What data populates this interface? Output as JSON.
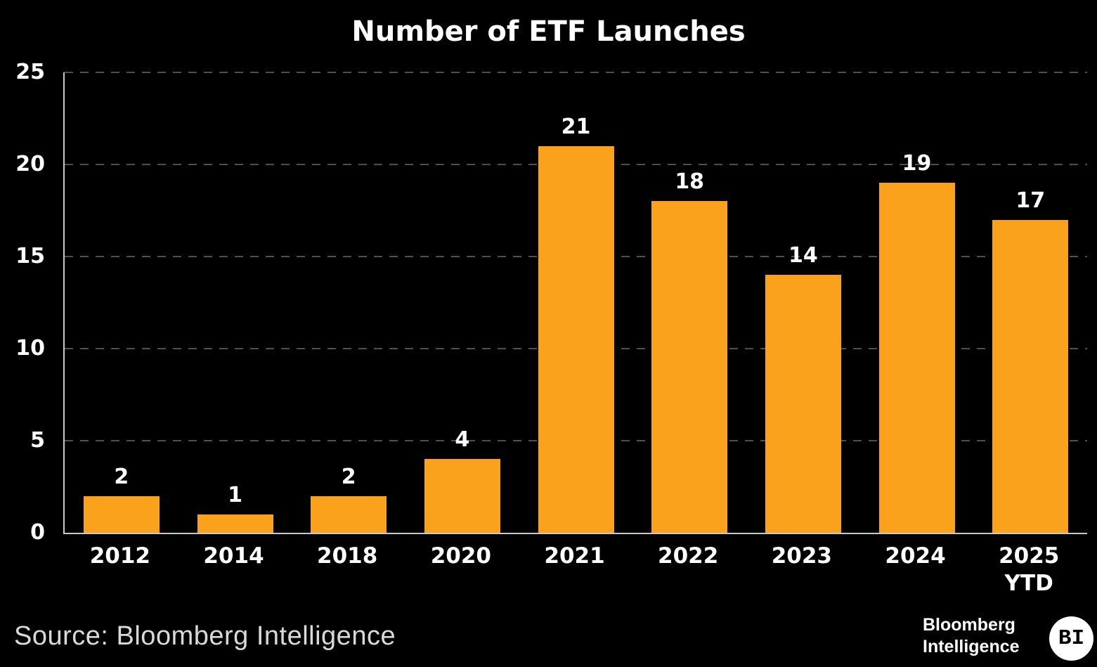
{
  "title": "Number of ETF Launches",
  "source": "Source: Bloomberg Intelligence",
  "logo": {
    "line1": "Bloomberg",
    "line2": "Intelligence",
    "badge": "BI"
  },
  "colors": {
    "background": "#000000",
    "bar": "#FAA21B",
    "gridline": "#4F4F4F",
    "axis": "#C9C9C9",
    "label_text": "#FFFFFF",
    "source_text": "#D9D9D9"
  },
  "chart_data": {
    "type": "bar",
    "title": "Number of ETF Launches",
    "categories": [
      "2012",
      "2014",
      "2018",
      "2020",
      "2021",
      "2022",
      "2023",
      "2024",
      "2025"
    ],
    "category_sublabels": [
      "",
      "",
      "",
      "",
      "",
      "",
      "",
      "",
      "YTD"
    ],
    "values": [
      2,
      1,
      2,
      4,
      21,
      18,
      14,
      19,
      17
    ],
    "value_labels": [
      "2",
      "1",
      "2",
      "4",
      "21",
      "18",
      "14",
      "19",
      "17"
    ],
    "xlabel": "",
    "ylabel": "",
    "ylim": [
      0,
      25
    ],
    "yticks": [
      0,
      5,
      10,
      15,
      20,
      25
    ],
    "grid": "horizontal-dashed",
    "legend": "none",
    "bar_color": "#FAA21B",
    "source": "Source: Bloomberg Intelligence"
  }
}
